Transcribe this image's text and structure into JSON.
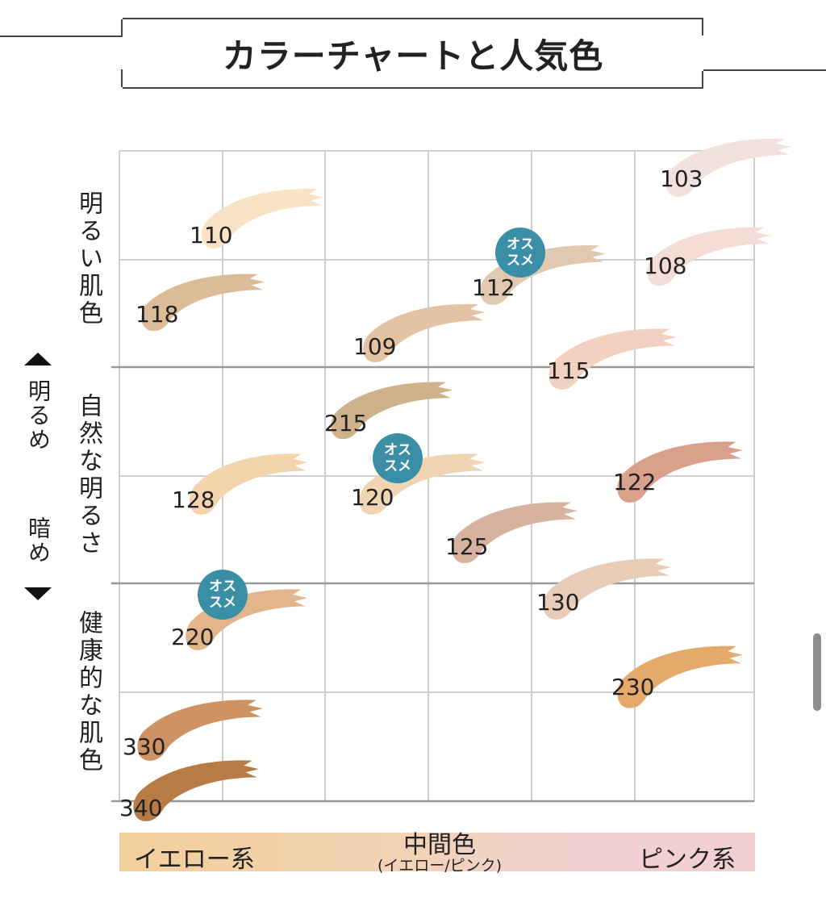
{
  "title": "カラーチャートと人気色",
  "rows": [
    {
      "label": "明るい肌色",
      "color": "#f6ddc6"
    },
    {
      "label": "自然な明るさ",
      "color": "#f0caa2"
    },
    {
      "label": "健康的な肌色",
      "color": "#e7b387"
    }
  ],
  "side_axis": {
    "top": "明るめ",
    "bottom": "暗め"
  },
  "x_axis": {
    "left": "イエロー系",
    "middle": "中間色",
    "middle_sub": "(イエロー/ピンク)",
    "right": "ピンク系"
  },
  "badge_text": "オス\nスメ",
  "shades": [
    {
      "code": "103",
      "color": "#f2e1de",
      "recommended": false
    },
    {
      "code": "108",
      "color": "#f3ddd6",
      "recommended": false
    },
    {
      "code": "110",
      "color": "#f8e3c4",
      "recommended": false
    },
    {
      "code": "118",
      "color": "#dcbb98",
      "recommended": false
    },
    {
      "code": "112",
      "color": "#e1c9b1",
      "recommended": true
    },
    {
      "code": "109",
      "color": "#e3c3a3",
      "recommended": false
    },
    {
      "code": "115",
      "color": "#f3d1c1",
      "recommended": false
    },
    {
      "code": "215",
      "color": "#cfb28b",
      "recommended": false
    },
    {
      "code": "120",
      "color": "#f1d4b2",
      "recommended": true
    },
    {
      "code": "128",
      "color": "#f3d4ad",
      "recommended": false
    },
    {
      "code": "122",
      "color": "#d9a18c",
      "recommended": false
    },
    {
      "code": "125",
      "color": "#d7b29f",
      "recommended": false
    },
    {
      "code": "130",
      "color": "#e9ccb7",
      "recommended": false
    },
    {
      "code": "220",
      "color": "#e2b58b",
      "recommended": true
    },
    {
      "code": "230",
      "color": "#e4a96b",
      "recommended": false
    },
    {
      "code": "330",
      "color": "#cf9262",
      "recommended": false
    },
    {
      "code": "340",
      "color": "#b87b46",
      "recommended": false
    }
  ]
}
